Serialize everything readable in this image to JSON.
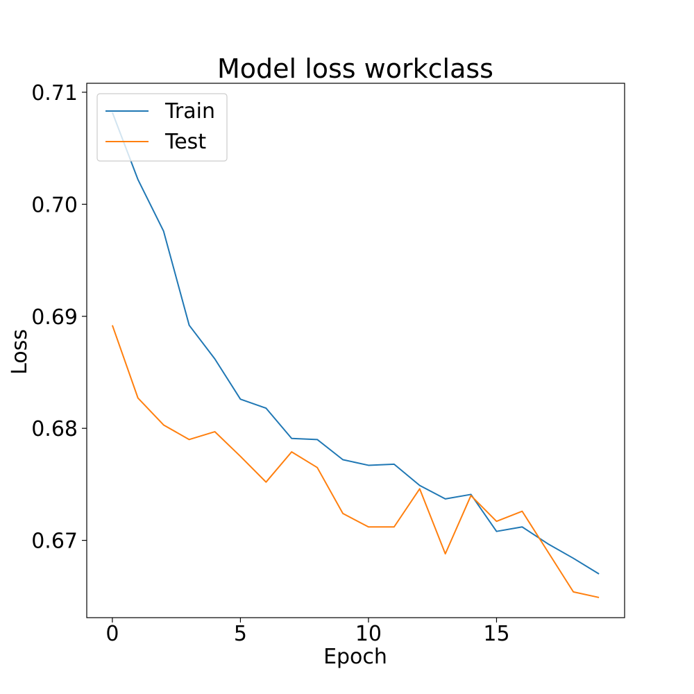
{
  "chart_data": {
    "type": "line",
    "title": "Model loss workclass",
    "xlabel": "Epoch",
    "ylabel": "Loss",
    "xlim": [
      -1,
      20
    ],
    "ylim": [
      0.6631,
      0.7108
    ],
    "xticks": [
      0,
      5,
      10,
      15
    ],
    "xtick_labels": [
      "0",
      "5",
      "10",
      "15"
    ],
    "yticks": [
      0.67,
      0.68,
      0.69,
      0.7,
      0.71
    ],
    "ytick_labels": [
      "0.67",
      "0.68",
      "0.69",
      "0.70",
      "0.71"
    ],
    "grid": false,
    "legend_position": "upper-left",
    "x": [
      0,
      1,
      2,
      3,
      4,
      5,
      6,
      7,
      8,
      9,
      10,
      11,
      12,
      13,
      14,
      15,
      16,
      17,
      18,
      19
    ],
    "series": [
      {
        "name": "Train",
        "color": "#1f77b4",
        "values": [
          0.7082,
          0.7022,
          0.6976,
          0.6892,
          0.6862,
          0.6826,
          0.6818,
          0.6791,
          0.679,
          0.6772,
          0.6767,
          0.6768,
          0.6749,
          0.6737,
          0.6741,
          0.6708,
          0.6712,
          0.6697,
          0.6684,
          0.667
        ]
      },
      {
        "name": "Test",
        "color": "#ff7f0e",
        "values": [
          0.6892,
          0.6827,
          0.6803,
          0.679,
          0.6797,
          0.6775,
          0.6752,
          0.6779,
          0.6765,
          0.6724,
          0.6712,
          0.6712,
          0.6746,
          0.6688,
          0.674,
          0.6717,
          0.6726,
          0.669,
          0.6654,
          0.6649
        ]
      }
    ]
  }
}
